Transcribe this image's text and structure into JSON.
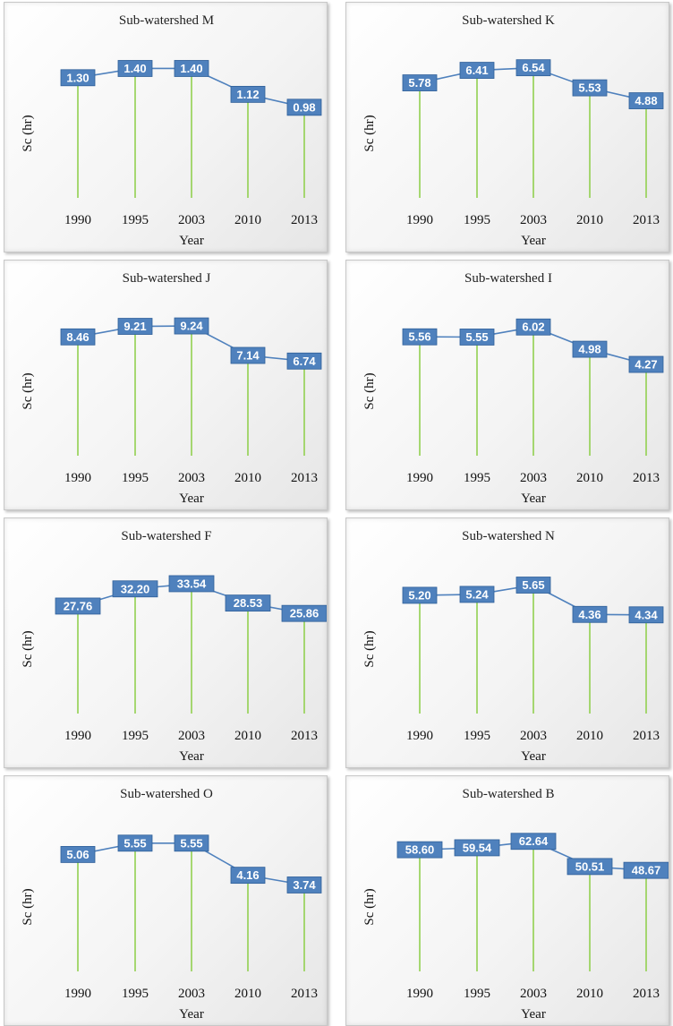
{
  "chart_data": [
    {
      "type": "line",
      "title": "Sub-watershed M",
      "xlabel": "Year",
      "ylabel": "Sc (hr)",
      "categories": [
        "1990",
        "1995",
        "2003",
        "2010",
        "2013"
      ],
      "values": [
        1.3,
        1.4,
        1.4,
        1.12,
        0.98
      ],
      "labels": [
        "1.30",
        "1.40",
        "1.40",
        "1.12",
        "0.98"
      ],
      "ylim": [
        0,
        1.55
      ]
    },
    {
      "type": "line",
      "title": "Sub-watershed K",
      "xlabel": "Year",
      "ylabel": "Sc (hr)",
      "categories": [
        "1990",
        "1995",
        "2003",
        "2010",
        "2013"
      ],
      "values": [
        5.78,
        6.41,
        6.54,
        5.53,
        4.88
      ],
      "labels": [
        "5.78",
        "6.41",
        "6.54",
        "5.53",
        "4.88"
      ],
      "ylim": [
        0,
        7.2
      ]
    },
    {
      "type": "line",
      "title": "Sub-watershed J",
      "xlabel": "Year",
      "ylabel": "Sc (hr)",
      "categories": [
        "1990",
        "1995",
        "2003",
        "2010",
        "2013"
      ],
      "values": [
        8.46,
        9.21,
        9.24,
        7.14,
        6.74
      ],
      "labels": [
        "8.46",
        "9.21",
        "9.24",
        "7.14",
        "6.74"
      ],
      "ylim": [
        0,
        10.2
      ]
    },
    {
      "type": "line",
      "title": "Sub-watershed I",
      "xlabel": "Year",
      "ylabel": "Sc (hr)",
      "categories": [
        "1990",
        "1995",
        "2003",
        "2010",
        "2013"
      ],
      "values": [
        5.56,
        5.55,
        6.02,
        4.98,
        4.27
      ],
      "labels": [
        "5.56",
        "5.55",
        "6.02",
        "4.98",
        "4.27"
      ],
      "ylim": [
        0,
        6.7
      ]
    },
    {
      "type": "line",
      "title": "Sub-watershed F",
      "xlabel": "Year",
      "ylabel": "Sc (hr)",
      "categories": [
        "1990",
        "1995",
        "2003",
        "2010",
        "2013"
      ],
      "values": [
        27.76,
        32.2,
        33.54,
        28.53,
        25.86
      ],
      "labels": [
        "27.76",
        "32.20",
        "33.54",
        "28.53",
        "25.86"
      ],
      "ylim": [
        0,
        37
      ]
    },
    {
      "type": "line",
      "title": "Sub-watershed N",
      "xlabel": "Year",
      "ylabel": "Sc (hr)",
      "categories": [
        "1990",
        "1995",
        "2003",
        "2010",
        "2013"
      ],
      "values": [
        5.2,
        5.24,
        5.65,
        4.36,
        4.34
      ],
      "labels": [
        "5.20",
        "5.24",
        "5.65",
        "4.36",
        "4.34"
      ],
      "ylim": [
        0,
        6.3
      ]
    },
    {
      "type": "line",
      "title": "Sub-watershed O",
      "xlabel": "Year",
      "ylabel": "Sc (hr)",
      "categories": [
        "1990",
        "1995",
        "2003",
        "2010",
        "2013"
      ],
      "values": [
        5.06,
        5.55,
        5.55,
        4.16,
        3.74
      ],
      "labels": [
        "5.06",
        "5.55",
        "5.55",
        "4.16",
        "3.74"
      ],
      "ylim": [
        0,
        6.2
      ]
    },
    {
      "type": "line",
      "title": "Sub-watershed B",
      "xlabel": "Year",
      "ylabel": "Sc (hr)",
      "categories": [
        "1990",
        "1995",
        "2003",
        "2010",
        "2013"
      ],
      "values": [
        58.6,
        59.54,
        62.64,
        50.51,
        48.67
      ],
      "labels": [
        "58.60",
        "59.54",
        "62.64",
        "50.51",
        "48.67"
      ],
      "ylim": [
        0,
        69
      ]
    }
  ],
  "colors": {
    "series": "#4f81bd",
    "drop_lines": "#92d050",
    "label_text": "#ffffff"
  }
}
